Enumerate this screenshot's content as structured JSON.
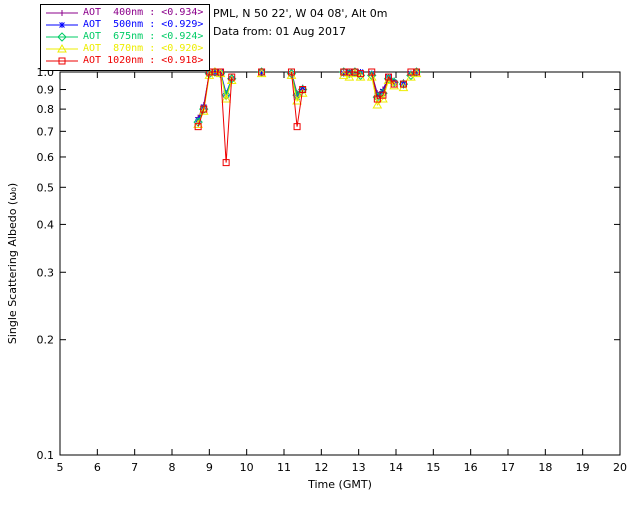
{
  "header": {
    "station_line": "PML, N 50 22', W 04 08', Alt 0m",
    "date_line": "Data from: 01 Aug 2017"
  },
  "chart_data": {
    "type": "line",
    "title": "",
    "xlabel": "Time (GMT)",
    "ylabel": "Single Scattering Albedo (ω₀)",
    "xlim": [
      5,
      20
    ],
    "ylim": [
      0.1,
      1.0
    ],
    "yscale": "log",
    "grid": false,
    "legend_position": "top-left",
    "xticks": [
      5,
      6,
      7,
      8,
      9,
      10,
      11,
      12,
      13,
      14,
      15,
      16,
      17,
      18,
      19,
      20
    ],
    "yticks": [
      1.0,
      0.9,
      0.8,
      0.7,
      0.6,
      0.5,
      0.4,
      0.3,
      0.2,
      0.1
    ],
    "x": [
      8.7,
      8.85,
      9.0,
      9.15,
      9.3,
      9.45,
      9.6,
      10.4,
      11.2,
      11.35,
      11.5,
      12.6,
      12.75,
      12.9,
      13.05,
      13.35,
      13.5,
      13.65,
      13.8,
      13.95,
      14.2,
      14.4,
      14.55
    ],
    "gap_threshold": 0.2,
    "series": [
      {
        "name": "AOT 400nm",
        "label": "AOT  400nm : <0.934>",
        "average": 0.934,
        "color": "#8b008b",
        "marker": "plus",
        "values": [
          0.76,
          0.82,
          0.99,
          1.0,
          1.0,
          0.86,
          0.97,
          1.0,
          1.0,
          0.88,
          0.91,
          1.0,
          0.99,
          1.0,
          0.99,
          0.99,
          0.88,
          0.9,
          0.97,
          0.95,
          0.94,
          0.99,
          1.0
        ]
      },
      {
        "name": "AOT 500nm",
        "label": "AOT  500nm : <0.929>",
        "average": 0.929,
        "color": "#0000ff",
        "marker": "asterisk",
        "values": [
          0.75,
          0.81,
          0.99,
          1.0,
          1.0,
          0.88,
          0.96,
          1.0,
          0.99,
          0.86,
          0.9,
          0.99,
          1.0,
          0.99,
          1.0,
          0.99,
          0.87,
          0.89,
          0.97,
          0.94,
          0.93,
          0.99,
          1.0
        ]
      },
      {
        "name": "AOT 675nm",
        "label": "AOT  675nm : <0.924>",
        "average": 0.924,
        "color": "#00cc66",
        "marker": "diamond",
        "values": [
          0.74,
          0.8,
          0.99,
          1.0,
          0.99,
          0.87,
          0.96,
          1.0,
          0.99,
          0.87,
          0.9,
          1.0,
          0.99,
          1.0,
          0.98,
          0.98,
          0.86,
          0.88,
          0.96,
          0.94,
          0.93,
          0.98,
          1.0
        ]
      },
      {
        "name": "AOT 870nm",
        "label": "AOT  870nm : <0.920>",
        "average": 0.92,
        "color": "#eded00",
        "marker": "triangle",
        "values": [
          0.73,
          0.79,
          0.98,
          1.0,
          0.99,
          0.85,
          0.95,
          0.99,
          0.98,
          0.84,
          0.88,
          0.98,
          0.97,
          0.99,
          0.97,
          0.97,
          0.82,
          0.85,
          0.95,
          0.92,
          0.91,
          0.97,
          0.99
        ]
      },
      {
        "name": "AOT 1020nm",
        "label": "AOT 1020nm : <0.918>",
        "average": 0.918,
        "color": "#ee0000",
        "marker": "square",
        "values": [
          0.72,
          0.8,
          1.0,
          1.0,
          1.0,
          0.58,
          0.97,
          1.0,
          1.0,
          0.72,
          0.9,
          1.0,
          1.0,
          1.0,
          0.99,
          1.0,
          0.85,
          0.87,
          0.97,
          0.93,
          0.93,
          1.0,
          1.0
        ]
      }
    ]
  }
}
